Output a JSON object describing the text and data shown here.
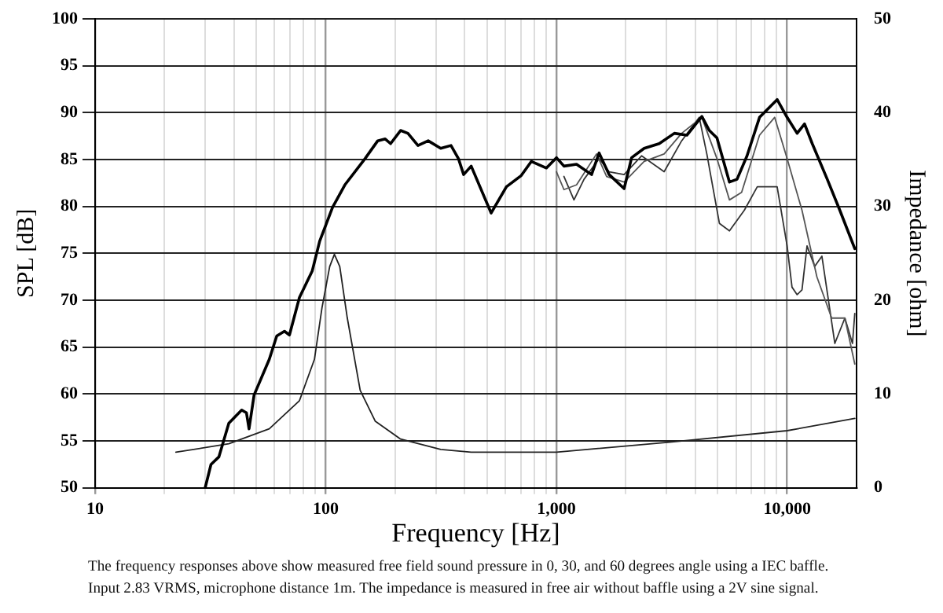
{
  "chart_data": {
    "type": "line",
    "xlabel": "Frequency [Hz]",
    "ylabel": "SPL [dB]",
    "y2label": "Impedance [ohm]",
    "log": "x",
    "grid": true,
    "legend": false,
    "marker": "none",
    "line_style": "solid",
    "xlim": [
      10,
      20000
    ],
    "xticks": [
      10,
      {
        "value": 20,
        "label": null
      },
      {
        "value": 30,
        "label": null
      },
      {
        "value": 40,
        "label": null
      },
      {
        "value": 50,
        "label": null
      },
      {
        "value": 60,
        "label": null
      },
      {
        "value": 70,
        "label": null
      },
      {
        "value": 80,
        "label": null
      },
      {
        "value": 90,
        "label": null
      },
      100,
      {
        "value": 200,
        "label": null
      },
      {
        "value": 300,
        "label": null
      },
      {
        "value": 400,
        "label": null
      },
      {
        "value": 500,
        "label": null
      },
      {
        "value": 600,
        "label": null
      },
      {
        "value": 700,
        "label": null
      },
      {
        "value": 800,
        "label": null
      },
      {
        "value": 900,
        "label": null
      },
      {
        "value": 1000,
        "label": "1,000"
      },
      {
        "value": 2000,
        "label": null
      },
      {
        "value": 3000,
        "label": null
      },
      {
        "value": 4000,
        "label": null
      },
      {
        "value": 5000,
        "label": null
      },
      {
        "value": 6000,
        "label": null
      },
      {
        "value": 7000,
        "label": null
      },
      {
        "value": 8000,
        "label": null
      },
      {
        "value": 9000,
        "label": null
      },
      {
        "value": 10000,
        "label": "10,000"
      }
    ],
    "ylim": [
      50,
      100
    ],
    "yticks": [
      50,
      55,
      60,
      65,
      70,
      75,
      80,
      85,
      90,
      95,
      100
    ],
    "y2lim": [
      0,
      50
    ],
    "y2ticks": [
      0,
      10,
      20,
      30,
      40,
      50
    ],
    "series": [
      {
        "color": "#000000",
        "x": [
          30,
          31.8,
          34.4,
          38,
          43.2,
          45.3,
          46.5,
          48.9,
          56.9,
          61.3,
          66.2,
          69.6,
          76.9,
          87.3,
          94.1,
          107,
          121,
          148,
          168,
          181,
          191,
          211,
          227,
          251,
          278,
          315,
          349,
          376,
          396,
          427,
          521,
          607,
          704,
          778,
          905,
          1000,
          1078,
          1222,
          1420,
          1531,
          1692,
          1965,
          2118,
          2400,
          2790,
          3244,
          3676,
          4270,
          4600,
          4964,
          5624,
          6066,
          6702,
          7593,
          9052,
          10000,
          11050,
          11900,
          12850,
          14930,
          16920,
          19650
        ],
        "values": [
          50,
          52.5,
          53.3,
          56.9,
          58.3,
          58,
          56.3,
          59.9,
          63.7,
          66.2,
          66.7,
          66.3,
          70.3,
          73.1,
          76.3,
          79.9,
          82.3,
          85.1,
          87,
          87.2,
          86.7,
          88.1,
          87.8,
          86.5,
          87,
          86.2,
          86.5,
          85.1,
          83.4,
          84.3,
          79.3,
          82.1,
          83.3,
          84.8,
          84.1,
          85.2,
          84.3,
          84.5,
          83.4,
          85.7,
          83.4,
          81.9,
          85.2,
          86.2,
          86.7,
          87.8,
          87.6,
          89.6,
          88.1,
          87.3,
          82.6,
          82.9,
          85.4,
          89.5,
          91.4,
          89.5,
          87.8,
          88.8,
          86.7,
          82.9,
          79.6,
          75.5
        ]
      },
      {
        "color": "#555555",
        "x": [
          1000,
          1078,
          1222,
          1492,
          1650,
          1965,
          2400,
          2930,
          3490,
          4270,
          4964,
          5624,
          6350,
          7593,
          8830,
          10000,
          11600,
          13460,
          15600,
          17800,
          19650
        ],
        "values": [
          83.7,
          81.8,
          82.3,
          85.6,
          83.2,
          82.6,
          84.8,
          85.6,
          87.8,
          89.5,
          85.1,
          80.7,
          81.5,
          87.6,
          89.5,
          85.1,
          79.6,
          72.5,
          68.1,
          68.1,
          63.2
        ]
      },
      {
        "color": "#333333",
        "x": [
          1078,
          1191,
          1317,
          1531,
          1692,
          1965,
          2339,
          2930,
          3490,
          4160,
          4487,
          5087,
          5624,
          6524,
          7425,
          9052,
          10000,
          10500,
          11050,
          11600,
          12200,
          13170,
          14150,
          16100,
          17800,
          19200,
          19650
        ],
        "values": [
          83.2,
          80.7,
          82.9,
          85.1,
          83.7,
          83.4,
          85.4,
          83.7,
          87,
          89.5,
          85.6,
          78.2,
          77.4,
          79.6,
          82.1,
          82.1,
          75.8,
          71.4,
          70.6,
          71.1,
          75.8,
          73.6,
          74.7,
          65.4,
          68.1,
          65.4,
          68.6
        ]
      },
      {
        "color": "#222222",
        "axis": "y2",
        "x": [
          22.4,
          38,
          56.9,
          76.9,
          89.3,
          96.3,
          104,
          109,
          115,
          124,
          141,
          164,
          211,
          315,
          427,
          1000,
          3162,
          10000,
          19650
        ],
        "values": [
          3.8,
          4.7,
          6.3,
          9.3,
          13.7,
          19.2,
          23.6,
          24.9,
          23.6,
          18.1,
          10.4,
          7.1,
          5.2,
          4.1,
          3.8,
          3.8,
          4.9,
          6.1,
          7.4
        ]
      }
    ],
    "annotations": [
      "The frequency responses above show measured free field sound pressure in 0, 30, and 60 degrees angle using a IEC baffle.",
      "Input 2.83 VRMS, microphone distance 1m. The impedance is measured in free air without baffle using a 2V sine signal."
    ]
  }
}
